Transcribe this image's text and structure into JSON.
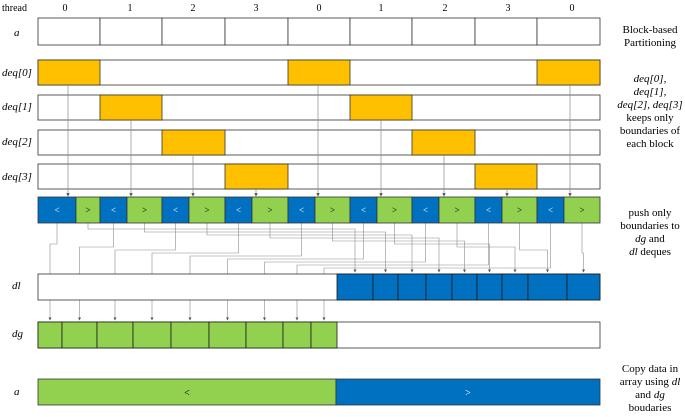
{
  "header": {
    "label": "thread",
    "ids": [
      "0",
      "1",
      "2",
      "3",
      "0",
      "1",
      "2",
      "3",
      "0"
    ]
  },
  "rows": {
    "a": "a",
    "deq0": "deq[0]",
    "deq1": "deq[1]",
    "deq2": "deq[2]",
    "deq3": "deq[3]",
    "dl": "dl",
    "dg": "dg",
    "a2": "a"
  },
  "pairs": {
    "less": "<",
    "greater": ">"
  },
  "final_array": {
    "left": "<",
    "right": ">"
  },
  "notes": {
    "block_partitioning": [
      "Block-based",
      "Partitioning"
    ],
    "deq_keep": [
      {
        "text": "deq[0],",
        "italic": true
      },
      {
        "text": "deq[1],",
        "italic": true
      },
      {
        "text": "deq[2], deq[3]",
        "italic": true
      },
      {
        "text": "keeps only",
        "italic": false
      },
      {
        "text": "boundaries of",
        "italic": false
      },
      {
        "text": "each block",
        "italic": false
      }
    ],
    "push_only": [
      {
        "parts": [
          {
            "t": "push only",
            "i": false
          }
        ]
      },
      {
        "parts": [
          {
            "t": "boundaries to",
            "i": false
          }
        ]
      },
      {
        "parts": [
          {
            "t": "dg",
            "i": true
          },
          {
            "t": " and",
            "i": false
          }
        ]
      },
      {
        "parts": [
          {
            "t": "dl",
            "i": true
          },
          {
            "t": " deques",
            "i": false
          }
        ]
      }
    ],
    "copy_data": [
      {
        "parts": [
          {
            "t": "Copy data in",
            "i": false
          }
        ]
      },
      {
        "parts": [
          {
            "t": "array using ",
            "i": false
          },
          {
            "t": "dl",
            "i": true
          }
        ]
      },
      {
        "parts": [
          {
            "t": "and ",
            "i": false
          },
          {
            "t": "dg",
            "i": true
          }
        ]
      },
      {
        "parts": [
          {
            "t": "boudaries",
            "i": false
          }
        ]
      }
    ]
  },
  "colors": {
    "orange": "#FFC000",
    "green": "#92D050",
    "blue": "#0070C0",
    "arrow": "#9a9a9a"
  }
}
